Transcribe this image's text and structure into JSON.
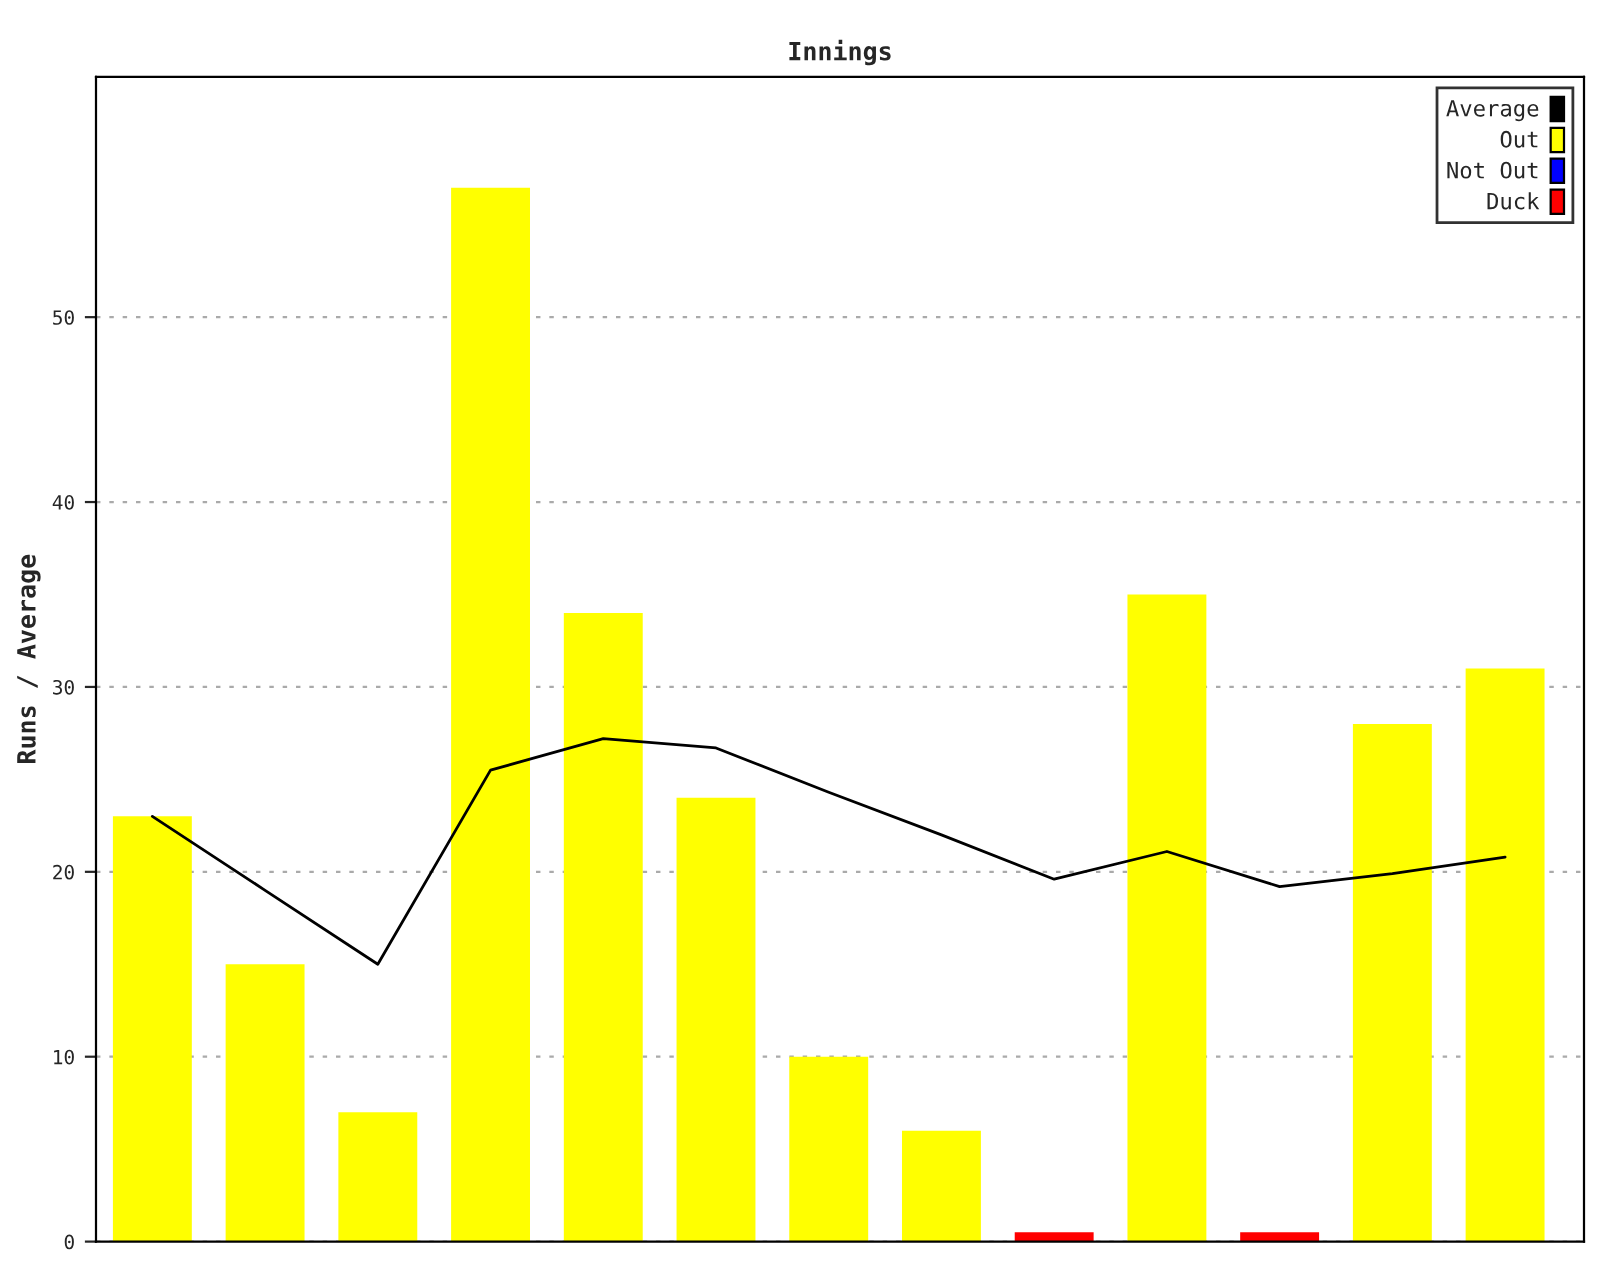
{
  "chart_data": {
    "type": "bar",
    "title": "Innings",
    "ylabel": "Runs / Average",
    "categories": [
      null,
      null,
      null,
      null,
      null,
      null,
      null,
      null,
      null,
      null,
      null,
      null,
      null
    ],
    "series": [
      {
        "name": "Average",
        "type": "line",
        "color": "#000000",
        "values": [
          23,
          19,
          15,
          25.5,
          27.2,
          26.7,
          24.3,
          22,
          19.6,
          21.1,
          19.2,
          19.9,
          20.8
        ]
      },
      {
        "name": "Out",
        "color": "#ffff00",
        "values": [
          23,
          15,
          7,
          57,
          34,
          24,
          10,
          6,
          null,
          35,
          null,
          28,
          31
        ]
      },
      {
        "name": "Not Out",
        "color": "#0000ff",
        "values": [
          null,
          null,
          null,
          null,
          null,
          null,
          null,
          null,
          null,
          null,
          null,
          null,
          null
        ]
      },
      {
        "name": "Duck",
        "color": "#ff0000",
        "values": [
          null,
          null,
          null,
          null,
          null,
          null,
          null,
          null,
          0.5,
          null,
          0.5,
          null,
          null
        ]
      }
    ],
    "ylim": [
      0,
      63
    ],
    "yticks": [
      0,
      10,
      20,
      30,
      40,
      50
    ],
    "grid": "y",
    "legend": "top right"
  }
}
